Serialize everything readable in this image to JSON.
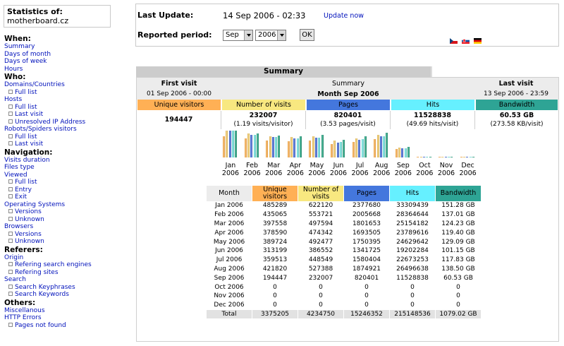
{
  "site": {
    "heading": "Statistics of:",
    "name": "motherboard.cz"
  },
  "menu": {
    "when": {
      "heading": "When:",
      "items": [
        "Summary",
        "Days of month",
        "Days of week",
        "Hours"
      ]
    },
    "who": {
      "heading": "Who:",
      "domains": "Domains/Countries",
      "domains_full": "Full list",
      "hosts": "Hosts",
      "hosts_full": "Full list",
      "hosts_last": "Last visit",
      "hosts_unresolved": "Unresolved IP Address",
      "robots": "Robots/Spiders visitors",
      "robots_full": "Full list",
      "robots_last": "Last visit"
    },
    "navigation": {
      "heading": "Navigation:",
      "visits_duration": "Visits duration",
      "files_type": "Files type",
      "viewed": "Viewed",
      "viewed_full": "Full list",
      "viewed_entry": "Entry",
      "viewed_exit": "Exit",
      "os": "Operating Systems",
      "os_versions": "Versions",
      "os_unknown": "Unknown",
      "browsers": "Browsers",
      "browsers_versions": "Versions",
      "browsers_unknown": "Unknown"
    },
    "referers": {
      "heading": "Referers:",
      "origin": "Origin",
      "search_engines": "Refering search engines",
      "sites": "Refering sites",
      "search": "Search",
      "keyphrases": "Search Keyphrases",
      "keywords": "Search Keywords"
    },
    "others": {
      "heading": "Others:",
      "misc": "Miscellanous",
      "http_errors": "HTTP Errors",
      "not_found": "Pages not found"
    }
  },
  "header": {
    "last_update_label": "Last Update:",
    "last_update_value": "14 Sep 2006 - 02:33",
    "update_now": "Update now",
    "period_label": "Reported period:",
    "month_selected": "Sep",
    "year_selected": "2006",
    "ok": "OK",
    "flags": [
      "flag-cz-icon",
      "flag-sk-icon",
      "flag-de-icon"
    ]
  },
  "summary": {
    "tab": "Summary",
    "first_visit_label": "First visit",
    "first_visit_value": "01 Sep 2006 - 00:00",
    "summary_label": "Summary",
    "period_label": "Month Sep 2006",
    "last_visit_label": "Last visit",
    "last_visit_value": "13 Sep 2006 - 23:59",
    "headers": [
      "Unique visitors",
      "Number of visits",
      "Pages",
      "Hits",
      "Bandwidth"
    ],
    "values": [
      "194447",
      "232007",
      "820401",
      "11528838",
      "60.53 GB"
    ],
    "subvalues": [
      "",
      "(1.19 visits/visitor)",
      "(3.53 pages/visit)",
      "(49.69 hits/visit)",
      "(273.58 KB/visit)"
    ],
    "colors": {
      "unique": "#ffb055",
      "visits": "#f8e880",
      "pages": "#4477dd",
      "hits": "#66f0ff",
      "bandwidth": "#2ea495",
      "top_bg": "#ececec"
    }
  },
  "chart_data": {
    "type": "bar",
    "categories": [
      "Jan 2006",
      "Feb 2006",
      "Mar 2006",
      "Apr 2006",
      "May 2006",
      "Jun 2006",
      "Jul 2006",
      "Aug 2006",
      "Sep 2006",
      "Oct 2006",
      "Nov 2006",
      "Dec 2006"
    ],
    "series": [
      {
        "name": "Unique visitors",
        "values": [
          485289,
          435065,
          397558,
          378590,
          389724,
          313199,
          359513,
          421820,
          194447,
          0,
          0,
          0
        ]
      },
      {
        "name": "Number of visits",
        "values": [
          622120,
          553721,
          497594,
          474342,
          492477,
          386552,
          448549,
          527388,
          232007,
          0,
          0,
          0
        ]
      },
      {
        "name": "Pages",
        "values": [
          2377680,
          2005668,
          1801653,
          1693505,
          1750395,
          1341725,
          1580404,
          1874921,
          820401,
          0,
          0,
          0
        ]
      },
      {
        "name": "Hits",
        "values": [
          33309439,
          28364644,
          25154182,
          23789616,
          24629642,
          19202284,
          22673253,
          26496638,
          11528838,
          0,
          0,
          0
        ]
      },
      {
        "name": "Bandwidth",
        "values": [
          151.28,
          137.01,
          124.23,
          119.4,
          129.09,
          101.15,
          117.83,
          138.5,
          60.53,
          0,
          0,
          0
        ]
      }
    ],
    "xlabel": "",
    "ylabel": ""
  },
  "table": {
    "headers": [
      "Month",
      "Unique visitors",
      "Number of visits",
      "Pages",
      "Hits",
      "Bandwidth"
    ],
    "rows": [
      [
        "Jan 2006",
        "485289",
        "622120",
        "2377680",
        "33309439",
        "151.28 GB"
      ],
      [
        "Feb 2006",
        "435065",
        "553721",
        "2005668",
        "28364644",
        "137.01 GB"
      ],
      [
        "Mar 2006",
        "397558",
        "497594",
        "1801653",
        "25154182",
        "124.23 GB"
      ],
      [
        "Apr 2006",
        "378590",
        "474342",
        "1693505",
        "23789616",
        "119.40 GB"
      ],
      [
        "May 2006",
        "389724",
        "492477",
        "1750395",
        "24629642",
        "129.09 GB"
      ],
      [
        "Jun 2006",
        "313199",
        "386552",
        "1341725",
        "19202284",
        "101.15 GB"
      ],
      [
        "Jul 2006",
        "359513",
        "448549",
        "1580404",
        "22673253",
        "117.83 GB"
      ],
      [
        "Aug 2006",
        "421820",
        "527388",
        "1874921",
        "26496638",
        "138.50 GB"
      ],
      [
        "Sep 2006",
        "194447",
        "232007",
        "820401",
        "11528838",
        "60.53 GB"
      ],
      [
        "Oct 2006",
        "0",
        "0",
        "0",
        "0",
        "0"
      ],
      [
        "Nov 2006",
        "0",
        "0",
        "0",
        "0",
        "0"
      ],
      [
        "Dec 2006",
        "0",
        "0",
        "0",
        "0",
        "0"
      ]
    ],
    "total": [
      "Total",
      "3375205",
      "4234750",
      "15246352",
      "215148536",
      "1079.02 GB"
    ]
  }
}
